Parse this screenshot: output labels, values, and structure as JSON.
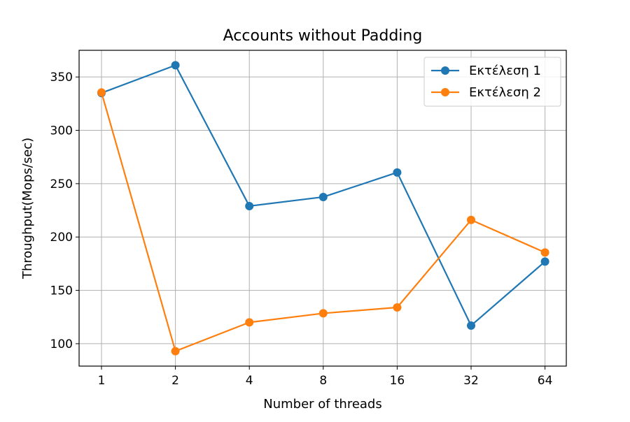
{
  "chart_data": {
    "type": "line",
    "title": "Accounts without Padding",
    "xlabel": "Number of threads",
    "ylabel": "Throughput(Mops/sec)",
    "categories": [
      "1",
      "2",
      "4",
      "8",
      "16",
      "32",
      "64"
    ],
    "ylim": [
      79,
      375
    ],
    "yticks": [
      100,
      150,
      200,
      250,
      300,
      350
    ],
    "grid": true,
    "legend_position": "top-right",
    "series": [
      {
        "name": "Εκτέλεση 1",
        "color": "#1f77b4",
        "values": [
          335,
          361,
          229,
          237.5,
          260.5,
          117,
          177
        ]
      },
      {
        "name": "Εκτέλεση 2",
        "color": "#ff7f0e",
        "values": [
          335.5,
          93,
          120,
          128.5,
          134,
          216,
          185.5
        ]
      }
    ]
  }
}
